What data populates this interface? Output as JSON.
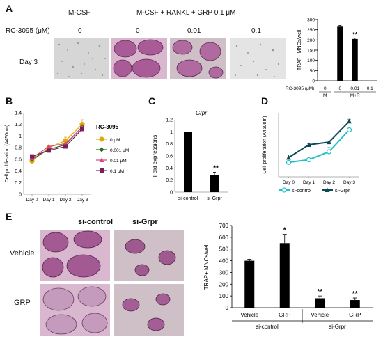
{
  "panel_labels": {
    "a": "A",
    "b": "B",
    "c": "C",
    "d": "D",
    "e": "E"
  },
  "panel_a": {
    "header_mcsf": "M-CSF",
    "header_treat": "M-CSF + RANKL + GRP 0.1 μM",
    "row_label": "RC-3095  (μM)",
    "doses": [
      "0",
      "0",
      "0.01",
      "0.1"
    ],
    "day_label": "Day 3"
  },
  "panel_e": {
    "col_labels": [
      "si-control",
      "si-Grpr"
    ],
    "row_labels": [
      "Vehicle",
      "GRP"
    ]
  },
  "chart_data": [
    {
      "id": "A-bar",
      "type": "bar",
      "ylabel": "TRAP+ MNCs/well",
      "ylim": [
        0,
        300
      ],
      "yticks": [
        0,
        50,
        100,
        150,
        200,
        250,
        300
      ],
      "categories": [
        "0",
        "0",
        "0.01",
        "0.1"
      ],
      "values": [
        0,
        265,
        205,
        0
      ],
      "errors": [
        0,
        6,
        5,
        0
      ],
      "significance": [
        "",
        "",
        "**",
        ""
      ],
      "x_row_label": "RC-3095 (μM)",
      "groups": [
        {
          "label": "M",
          "span": [
            0,
            0
          ]
        },
        {
          "label": "M+R",
          "span": [
            1,
            3
          ]
        }
      ]
    },
    {
      "id": "B-line",
      "type": "line",
      "ylabel": "Cell proliferation (A450nm)",
      "ylim": [
        0,
        1.4
      ],
      "yticks": [
        0,
        0.2,
        0.4,
        0.6,
        0.8,
        1,
        1.2,
        1.4
      ],
      "x": [
        "Day 0",
        "Day 1",
        "Day 2",
        "Day 3"
      ],
      "legend_title": "RC-3095",
      "series": [
        {
          "name": "0 μM",
          "color": "#e0a800",
          "marker": "circle",
          "values": [
            0.57,
            0.8,
            0.92,
            1.2
          ],
          "errors": [
            0.03,
            0.04,
            0.06,
            0.08
          ]
        },
        {
          "name": "0.001 μM",
          "color": "#2e6b1f",
          "marker": "diamond",
          "values": [
            0.6,
            0.77,
            0.85,
            1.16
          ],
          "errors": [
            0,
            0,
            0,
            0
          ]
        },
        {
          "name": "0.01 μM",
          "color": "#e0457f",
          "marker": "triangle",
          "values": [
            0.62,
            0.82,
            0.87,
            1.15
          ],
          "errors": [
            0,
            0,
            0,
            0
          ]
        },
        {
          "name": "0.1 μM",
          "color": "#7a1f5c",
          "marker": "square",
          "values": [
            0.65,
            0.75,
            0.82,
            1.12
          ],
          "errors": [
            0,
            0,
            0,
            0
          ]
        }
      ]
    },
    {
      "id": "C-bar",
      "type": "bar",
      "title": "Grpr",
      "ylabel": "Fold expressions",
      "ylim": [
        0,
        1.2
      ],
      "yticks": [
        0,
        0.2,
        0.4,
        0.6,
        0.8,
        1,
        1.2
      ],
      "categories": [
        "si-control",
        "si-Grpr"
      ],
      "values": [
        1.0,
        0.28
      ],
      "errors": [
        0,
        0.05
      ],
      "significance": [
        "",
        "**"
      ]
    },
    {
      "id": "D-line",
      "type": "line",
      "ylabel": "Cell proliferation (A450nm)",
      "ylim": [
        0,
        1.2
      ],
      "x": [
        "Day 0",
        "Day 1",
        "Day 2",
        "Day 3"
      ],
      "series": [
        {
          "name": "si-control",
          "color": "#1fc1c8",
          "marker": "circle",
          "values": [
            0.27,
            0.32,
            0.47,
            0.88
          ],
          "errors": [
            0.03,
            0.02,
            0.08,
            0.03
          ]
        },
        {
          "name": "si-Grpr",
          "color": "#0c4a55",
          "marker": "triangle",
          "values": [
            0.36,
            0.6,
            0.65,
            1.04
          ],
          "errors": [
            0.05,
            0.02,
            0.15,
            0.04
          ]
        }
      ]
    },
    {
      "id": "E-bar",
      "type": "bar",
      "ylabel": "TRAP+ MNCs/well",
      "ylim": [
        0,
        700
      ],
      "yticks": [
        0,
        100,
        200,
        300,
        400,
        500,
        600,
        700
      ],
      "categories": [
        "Vehicle",
        "GRP",
        "Vehicle",
        "GRP"
      ],
      "values": [
        400,
        550,
        80,
        65
      ],
      "errors": [
        12,
        75,
        20,
        18
      ],
      "significance": [
        "",
        "*",
        "**",
        "**"
      ],
      "groups": [
        {
          "label": "si-control",
          "span": [
            0,
            1
          ]
        },
        {
          "label": "si-Grpr",
          "span": [
            2,
            3
          ]
        }
      ]
    }
  ]
}
